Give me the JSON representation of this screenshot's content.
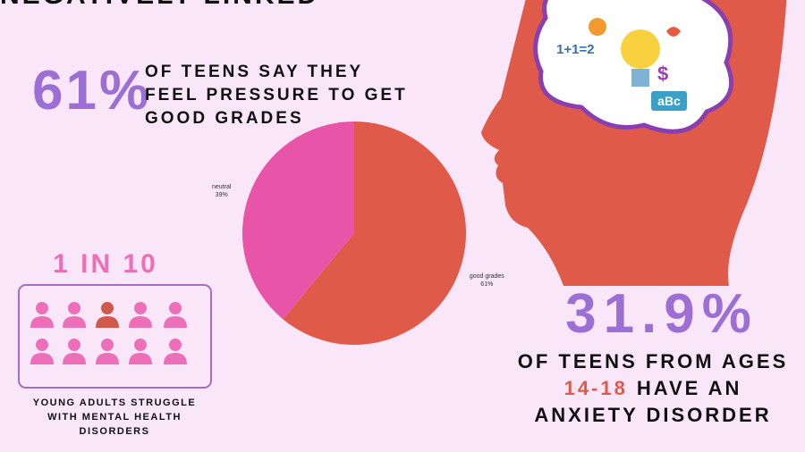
{
  "header": {
    "title": "NEGATIVELY LINKED"
  },
  "stat_grades": {
    "value": "61%",
    "lines": [
      "OF TEENS SAY THEY",
      "FEEL PRESSURE TO GET",
      "GOOD GRADES"
    ]
  },
  "stat_young": {
    "value": "1 IN 10",
    "lines": [
      "YOUNG ADULTS STRUGGLE",
      "WITH MENTAL HEALTH",
      "DISORDERS"
    ]
  },
  "stat_anxiety": {
    "value": "31.9%",
    "line1": "OF TEENS FROM AGES",
    "highlight": "14-18",
    "line2": "HAVE AN",
    "line3": "ANXIETY DISORDER"
  },
  "brain_icons": {
    "math": "1+1=2",
    "letters": "aBc",
    "money": "$"
  },
  "chart_data": {
    "type": "pie",
    "categories": [
      "good grades",
      "neutral"
    ],
    "values": [
      61,
      39
    ],
    "value_labels": [
      "61%",
      "39%"
    ],
    "colors": [
      "#e05a4a",
      "#e854a8"
    ]
  }
}
